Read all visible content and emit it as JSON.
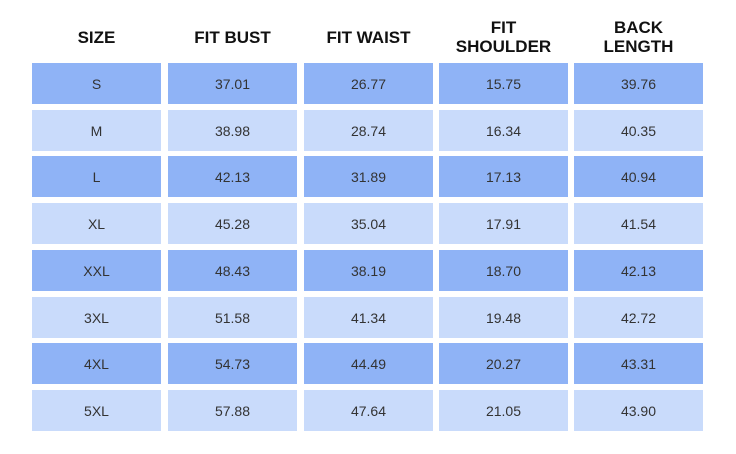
{
  "table": {
    "header": [
      "SIZE",
      "FIT BUST",
      "FIT WAIST",
      "FIT SHOULDER",
      "BACK LENGTH"
    ],
    "rows": [
      [
        "S",
        "37.01",
        "26.77",
        "15.75",
        "39.76"
      ],
      [
        "M",
        "38.98",
        "28.74",
        "16.34",
        "40.35"
      ],
      [
        "L",
        "42.13",
        "31.89",
        "17.13",
        "40.94"
      ],
      [
        "XL",
        "45.28",
        "35.04",
        "17.91",
        "41.54"
      ],
      [
        "XXL",
        "48.43",
        "38.19",
        "18.70",
        "42.13"
      ],
      [
        "3XL",
        "51.58",
        "41.34",
        "19.48",
        "42.72"
      ],
      [
        "4XL",
        "54.73",
        "44.49",
        "20.27",
        "43.31"
      ],
      [
        "5XL",
        "57.88",
        "47.64",
        "21.05",
        "43.90"
      ]
    ]
  }
}
